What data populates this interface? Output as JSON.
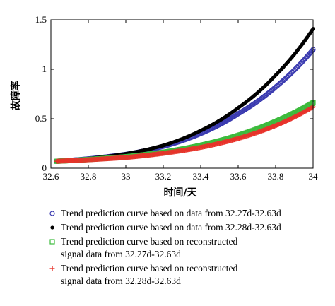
{
  "chart_data": {
    "type": "line",
    "xlabel": "时间/天",
    "ylabel": "故障率",
    "xlim": [
      32.6,
      34.0
    ],
    "ylim": [
      0,
      1.5
    ],
    "x_ticks": [
      "32.6",
      "32.8",
      "33",
      "33.2",
      "33.4",
      "33.6",
      "33.8",
      "34"
    ],
    "y_ticks": [
      "0",
      "0.5",
      "1",
      "1.5"
    ],
    "grid": false,
    "legend_position": "below",
    "series": [
      {
        "name": "Trend prediction curve based on data from 32.27d-32.63d",
        "marker": "circle-open",
        "color": "#3a3ab0",
        "x": [
          32.63,
          32.8,
          33.0,
          33.2,
          33.4,
          33.6,
          33.8,
          34.0
        ],
        "y": [
          0.07,
          0.095,
          0.14,
          0.22,
          0.35,
          0.55,
          0.82,
          1.2
        ]
      },
      {
        "name": "Trend prediction curve based on data from 32.28d-32.63d",
        "marker": "dot",
        "color": "#000000",
        "x": [
          32.63,
          32.8,
          33.0,
          33.2,
          33.4,
          33.6,
          33.8,
          34.0
        ],
        "y": [
          0.07,
          0.097,
          0.145,
          0.23,
          0.38,
          0.61,
          0.94,
          1.41
        ]
      },
      {
        "name": "Trend prediction curve based on reconstructed signal data from 32.27d-32.63d",
        "marker": "square-open",
        "color": "#3dbb3d",
        "x": [
          32.63,
          32.8,
          33.0,
          33.2,
          33.4,
          33.6,
          33.8,
          34.0
        ],
        "y": [
          0.07,
          0.088,
          0.115,
          0.16,
          0.23,
          0.33,
          0.47,
          0.66
        ]
      },
      {
        "name": "Trend prediction curve based on reconstructed signal data from 32.28d-32.63d",
        "marker": "plus",
        "color": "#e8322a",
        "x": [
          32.63,
          32.8,
          33.0,
          33.2,
          33.4,
          33.6,
          33.8,
          34.0
        ],
        "y": [
          0.07,
          0.085,
          0.108,
          0.15,
          0.21,
          0.3,
          0.43,
          0.62
        ]
      }
    ]
  },
  "legend": [
    {
      "lines": [
        "Trend prediction curve based on data from 32.27d-32.63d"
      ]
    },
    {
      "lines": [
        "Trend prediction curve based on data from 32.28d-32.63d"
      ]
    },
    {
      "lines": [
        "Trend prediction curve based on reconstructed",
        "signal data from 32.27d-32.63d"
      ]
    },
    {
      "lines": [
        "Trend prediction curve based on reconstructed",
        "signal data from 32.28d-32.63d"
      ]
    }
  ]
}
